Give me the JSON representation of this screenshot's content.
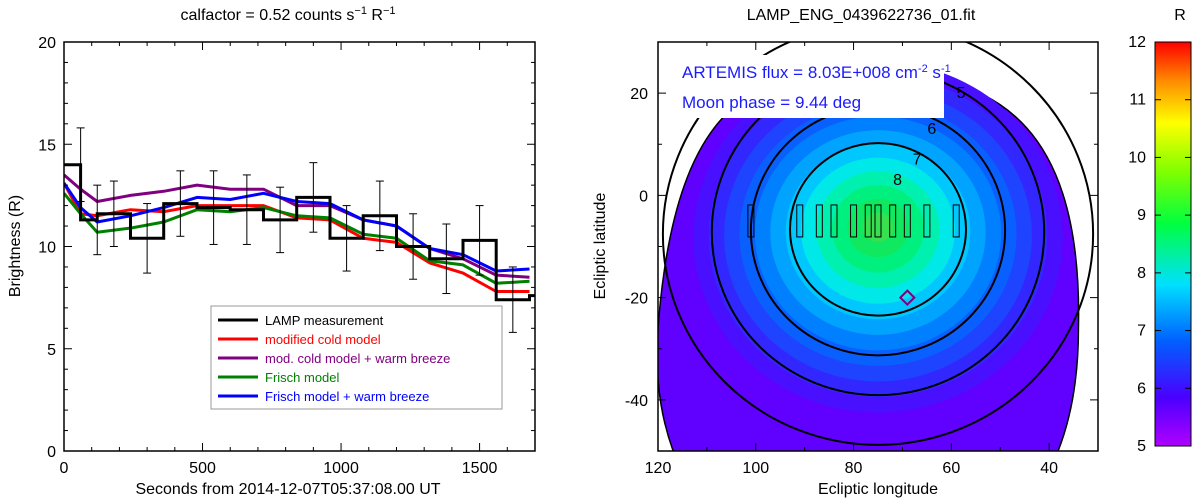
{
  "chart_data": [
    {
      "type": "line",
      "title_main": "calfactor = 0.52 counts s",
      "title_exp1": "−1",
      "title_mid": " R",
      "title_exp2": "−1",
      "xlabel": "Seconds from 2014-12-07T05:37:08.00 UT",
      "ylabel": "Brightness (R)",
      "xlim": [
        0,
        1700
      ],
      "ylim": [
        0,
        20
      ],
      "xticks": [
        0,
        500,
        1000,
        1500
      ],
      "yticks": [
        0,
        5,
        10,
        15,
        20
      ],
      "measurement": {
        "name": "LAMP measurement",
        "color": "#000000",
        "x": [
          0,
          60,
          120,
          240,
          360,
          480,
          600,
          720,
          840,
          960,
          1080,
          1200,
          1320,
          1440,
          1560,
          1680
        ],
        "y": [
          14.0,
          11.3,
          11.6,
          10.4,
          12.1,
          11.9,
          11.8,
          11.3,
          12.4,
          10.4,
          11.5,
          10.0,
          9.4,
          10.3,
          7.4,
          7.6
        ],
        "err": [
          1.8,
          1.7,
          1.6,
          1.7,
          1.6,
          1.8,
          1.7,
          1.6,
          1.7,
          1.6,
          1.7,
          1.6,
          1.7,
          1.7,
          1.6,
          1.4
        ]
      },
      "series": [
        {
          "name": "modified cold model",
          "color": "#ff0000",
          "x": [
            0,
            60,
            120,
            240,
            360,
            480,
            600,
            720,
            840,
            960,
            1080,
            1200,
            1320,
            1440,
            1560,
            1680
          ],
          "y": [
            13.1,
            11.6,
            11.5,
            11.8,
            11.7,
            12.0,
            12.0,
            12.0,
            11.4,
            11.3,
            10.4,
            10.2,
            9.2,
            8.7,
            7.8,
            7.8
          ]
        },
        {
          "name": "mod. cold model + warm breeze",
          "color": "#800080",
          "x": [
            0,
            60,
            120,
            240,
            360,
            480,
            600,
            720,
            840,
            960,
            1080,
            1200,
            1320,
            1440,
            1560,
            1680
          ],
          "y": [
            13.5,
            12.8,
            12.2,
            12.5,
            12.7,
            13.0,
            12.8,
            12.8,
            12.0,
            12.0,
            11.3,
            11.0,
            9.9,
            9.4,
            8.6,
            8.5
          ]
        },
        {
          "name": "Frisch model",
          "color": "#008000",
          "x": [
            0,
            60,
            120,
            240,
            360,
            480,
            600,
            720,
            840,
            960,
            1080,
            1200,
            1320,
            1440,
            1560,
            1680
          ],
          "y": [
            12.6,
            11.6,
            10.7,
            10.9,
            11.2,
            11.8,
            11.7,
            11.9,
            11.5,
            11.4,
            10.6,
            10.4,
            9.3,
            9.1,
            8.2,
            8.3
          ]
        },
        {
          "name": "Frisch model + warm breeze",
          "color": "#0000ff",
          "x": [
            0,
            60,
            120,
            240,
            360,
            480,
            600,
            720,
            840,
            960,
            1080,
            1200,
            1320,
            1440,
            1560,
            1680
          ],
          "y": [
            13.1,
            11.9,
            11.2,
            11.5,
            11.9,
            12.4,
            12.3,
            12.6,
            12.2,
            12.1,
            11.3,
            11.0,
            9.9,
            9.6,
            8.8,
            8.9
          ]
        }
      ],
      "legend_position": "bottom-right"
    },
    {
      "type": "heatmap",
      "title": "LAMP_ENG_0439622736_01.fit",
      "xlabel": "Ecliptic longitude",
      "ylabel": "Ecliptic latitude",
      "xlim": [
        120,
        30
      ],
      "ylim": [
        -50,
        30
      ],
      "xticks": [
        120,
        100,
        80,
        60,
        40
      ],
      "yticks": [
        -40,
        -20,
        0,
        20
      ],
      "center": [
        75,
        -6
      ],
      "contour_labels": [
        {
          "value": "5",
          "x": 58,
          "y": 19
        },
        {
          "value": "6",
          "x": 64,
          "y": 12
        },
        {
          "value": "7",
          "x": 67,
          "y": 6
        },
        {
          "value": "8",
          "x": 71,
          "y": 2
        }
      ],
      "contour_levels": [
        5,
        6,
        7,
        8
      ],
      "contour_radii_deg": [
        44,
        34,
        26,
        18
      ],
      "slit_positions": {
        "lon": [
          101,
          91,
          87,
          84,
          80,
          77,
          75,
          72,
          69,
          65,
          59
        ],
        "lat": [
          -5,
          -5,
          -5,
          -5,
          -5,
          -5,
          -5,
          -5,
          -5,
          -5,
          -5
        ]
      },
      "diamond_marker": {
        "lon": 69,
        "lat": -20
      },
      "annotation1_label": "ARTEMIS flux = ",
      "annotation1_value": " 8.03E+008 cm",
      "annotation1_exp1": "-2",
      "annotation1_unit": " s",
      "annotation1_exp2": "-1",
      "annotation2_label": "Moon phase = ",
      "annotation2_value": "  9.44 deg",
      "colorbar": {
        "label": "R",
        "min": 5,
        "max": 12,
        "ticks": [
          5,
          6,
          7,
          8,
          9,
          10,
          11,
          12
        ]
      }
    }
  ]
}
